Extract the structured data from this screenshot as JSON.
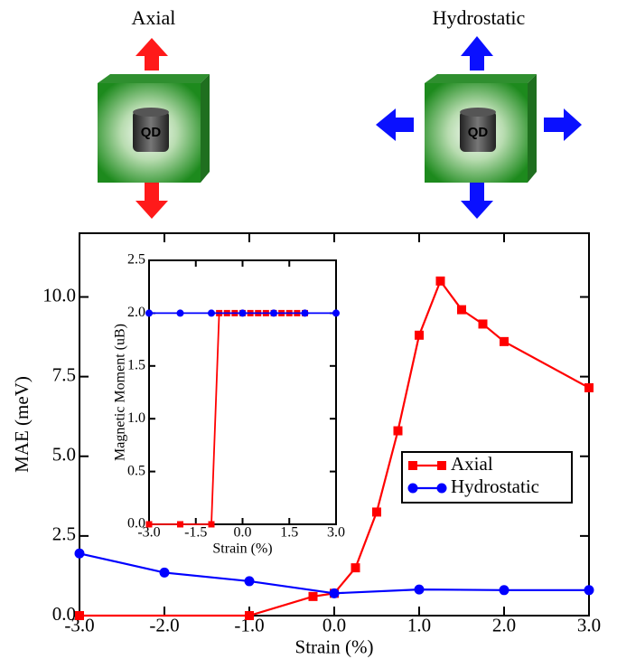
{
  "figure": {
    "panels": [
      {
        "title": "Axial",
        "label": "QD"
      },
      {
        "title": "Hydrostatic",
        "label": "QD"
      }
    ]
  },
  "chart_data": [
    {
      "type": "line",
      "x_label": "Strain (%)",
      "y_label": "MAE (meV)",
      "xlim": [
        -3,
        3
      ],
      "ylim": [
        0,
        12
      ],
      "xticks": [
        {
          "value": -3,
          "label": "-3.0"
        },
        {
          "value": -2,
          "label": "-2.0"
        },
        {
          "value": -1,
          "label": "-1.0"
        },
        {
          "value": 0,
          "label": "0.0"
        },
        {
          "value": 1,
          "label": "1.0"
        },
        {
          "value": 2,
          "label": "2.0"
        },
        {
          "value": 3,
          "label": "3.0"
        }
      ],
      "yticks": [
        {
          "value": 0,
          "label": "0.0"
        },
        {
          "value": 2.5,
          "label": "2.5"
        },
        {
          "value": 5,
          "label": "5.0"
        },
        {
          "value": 7.5,
          "label": "7.5"
        },
        {
          "value": 10,
          "label": "10.0"
        }
      ],
      "legend": "lower right",
      "series": [
        {
          "name": "Axial",
          "color": "#ff0000",
          "marker": "square",
          "x": [
            -3,
            -1,
            -0.25,
            0,
            0.25,
            0.5,
            0.75,
            1,
            1.25,
            1.5,
            1.75,
            2,
            3
          ],
          "values": [
            0,
            0,
            0.6,
            0.7,
            1.5,
            3.25,
            5.8,
            8.8,
            10.5,
            9.6,
            9.15,
            8.6,
            7.15
          ]
        },
        {
          "name": "Hydrostatic",
          "color": "#0000ff",
          "marker": "circle",
          "x": [
            -3,
            -2,
            -1,
            0,
            1,
            2,
            3
          ],
          "values": [
            1.95,
            1.35,
            1.08,
            0.7,
            0.82,
            0.8,
            0.8
          ]
        }
      ]
    },
    {
      "type": "line",
      "x_label": "Strain (%)",
      "y_label": "Magnetic Moment (uB)",
      "xlim": [
        -3,
        3
      ],
      "ylim": [
        0,
        2.5
      ],
      "xticks": [
        {
          "value": -3,
          "label": "-3.0"
        },
        {
          "value": -1.5,
          "label": "-1.5"
        },
        {
          "value": 0,
          "label": "0.0"
        },
        {
          "value": 1.5,
          "label": "1.5"
        },
        {
          "value": 3,
          "label": "3.0"
        }
      ],
      "yticks": [
        {
          "value": 0,
          "label": "0.0"
        },
        {
          "value": 0.5,
          "label": "0.5"
        },
        {
          "value": 1,
          "label": "1.0"
        },
        {
          "value": 1.5,
          "label": "1.5"
        },
        {
          "value": 2,
          "label": "2.0"
        },
        {
          "value": 2.5,
          "label": "2.5"
        }
      ],
      "series": [
        {
          "color": "#ff0000",
          "marker": "square",
          "x": [
            -3,
            -2,
            -1,
            -0.75,
            -0.5,
            -0.25,
            0,
            0.25,
            0.5,
            0.75,
            1,
            1.25,
            1.5,
            1.75,
            2
          ],
          "values": [
            0,
            0,
            0,
            2,
            2,
            2,
            2,
            2,
            2,
            2,
            2,
            2,
            2,
            2,
            2
          ]
        },
        {
          "color": "#0000ff",
          "marker": "circle",
          "x": [
            -3,
            -2,
            -1,
            0,
            1,
            2,
            3
          ],
          "values": [
            2,
            2,
            2,
            2,
            2,
            2,
            2
          ]
        }
      ]
    }
  ]
}
